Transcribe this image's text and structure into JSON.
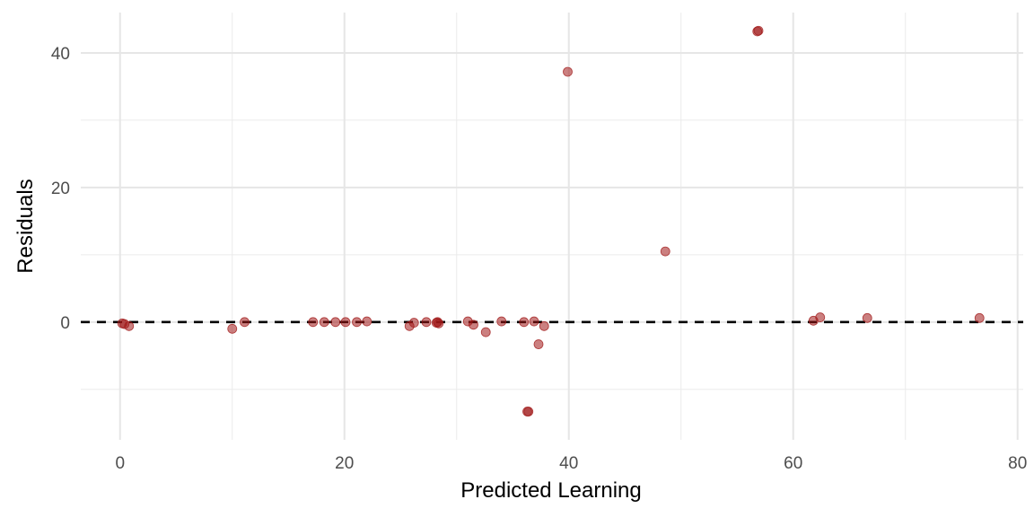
{
  "chart_data": {
    "type": "scatter",
    "title": "",
    "xlabel": "Predicted Learning",
    "ylabel": "Residuals",
    "xlim": [
      -3.5,
      80.5
    ],
    "ylim": [
      -17.5,
      46
    ],
    "x_ticks": [
      0,
      20,
      40,
      60,
      80
    ],
    "y_ticks": [
      0,
      20,
      40
    ],
    "x_minor_ticks": [
      10,
      30,
      50,
      70
    ],
    "y_minor_ticks": [
      -10,
      10,
      30
    ],
    "grid": true,
    "reference_line": {
      "y": 0,
      "style": "dashed",
      "color": "#000000"
    },
    "point_color": "#a01818",
    "point_opacity": 0.55,
    "points": [
      {
        "x": 0.2,
        "y": -0.2
      },
      {
        "x": 0.4,
        "y": -0.3
      },
      {
        "x": 0.8,
        "y": -0.6
      },
      {
        "x": 10.0,
        "y": -1.0
      },
      {
        "x": 11.1,
        "y": 0.0
      },
      {
        "x": 17.2,
        "y": 0.0
      },
      {
        "x": 18.2,
        "y": 0.0
      },
      {
        "x": 19.2,
        "y": 0.0
      },
      {
        "x": 20.1,
        "y": 0.0
      },
      {
        "x": 21.1,
        "y": 0.0
      },
      {
        "x": 22.0,
        "y": 0.1
      },
      {
        "x": 25.8,
        "y": -0.6
      },
      {
        "x": 26.2,
        "y": -0.1
      },
      {
        "x": 27.3,
        "y": 0.0
      },
      {
        "x": 28.2,
        "y": -0.1
      },
      {
        "x": 28.3,
        "y": 0.0
      },
      {
        "x": 28.4,
        "y": -0.2
      },
      {
        "x": 31.0,
        "y": 0.1
      },
      {
        "x": 31.5,
        "y": -0.4
      },
      {
        "x": 32.6,
        "y": -1.5
      },
      {
        "x": 34.0,
        "y": 0.1
      },
      {
        "x": 36.0,
        "y": 0.0
      },
      {
        "x": 36.3,
        "y": -13.3
      },
      {
        "x": 36.4,
        "y": -13.3
      },
      {
        "x": 36.9,
        "y": 0.1
      },
      {
        "x": 37.3,
        "y": -3.3
      },
      {
        "x": 37.8,
        "y": -0.6
      },
      {
        "x": 39.9,
        "y": 37.2
      },
      {
        "x": 48.6,
        "y": 10.5
      },
      {
        "x": 56.8,
        "y": 43.2
      },
      {
        "x": 56.9,
        "y": 43.3
      },
      {
        "x": 61.8,
        "y": 0.2
      },
      {
        "x": 62.4,
        "y": 0.7
      },
      {
        "x": 66.6,
        "y": 0.6
      },
      {
        "x": 76.6,
        "y": 0.6
      }
    ]
  }
}
